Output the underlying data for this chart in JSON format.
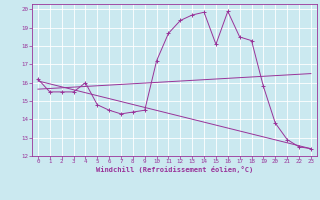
{
  "background_color": "#cbe9f0",
  "grid_color": "#ffffff",
  "line_color": "#993399",
  "xlim": [
    -0.5,
    23.5
  ],
  "ylim": [
    12,
    20.3
  ],
  "xticks": [
    0,
    1,
    2,
    3,
    4,
    5,
    6,
    7,
    8,
    9,
    10,
    11,
    12,
    13,
    14,
    15,
    16,
    17,
    18,
    19,
    20,
    21,
    22,
    23
  ],
  "yticks": [
    12,
    13,
    14,
    15,
    16,
    17,
    18,
    19,
    20
  ],
  "xlabel": "Windchill (Refroidissement éolien,°C)",
  "curve1_x": [
    0,
    1,
    2,
    3,
    4,
    5,
    6,
    7,
    8,
    9,
    10,
    11,
    12,
    13,
    14,
    15,
    16,
    17,
    18,
    19,
    20,
    21,
    22,
    23
  ],
  "curve1_y": [
    16.2,
    15.5,
    15.5,
    15.5,
    16.0,
    14.8,
    14.5,
    14.3,
    14.4,
    14.5,
    17.2,
    18.7,
    19.4,
    19.7,
    19.85,
    18.1,
    19.9,
    18.5,
    18.3,
    15.8,
    13.8,
    12.9,
    12.5,
    12.4
  ],
  "curve2_x": [
    0,
    23
  ],
  "curve2_y": [
    15.65,
    16.5
  ],
  "curve3_x": [
    0,
    23
  ],
  "curve3_y": [
    16.1,
    12.4
  ],
  "tick_fontsize": 4.2,
  "xlabel_fontsize": 5.0
}
